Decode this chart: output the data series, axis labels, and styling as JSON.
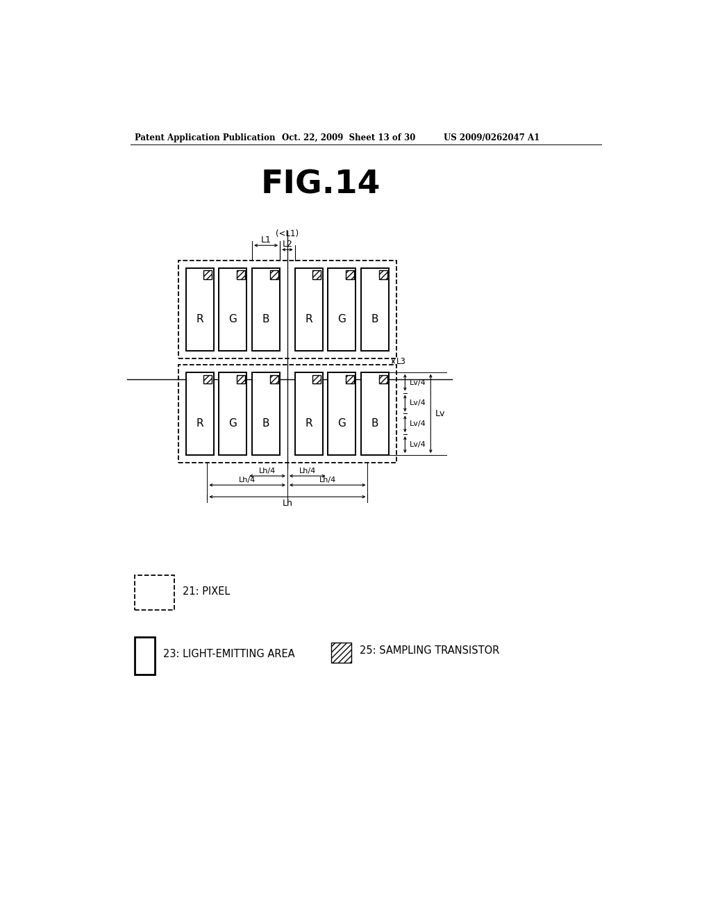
{
  "title": "FIG.14",
  "header_left": "Patent Application Publication",
  "header_mid": "Oct. 22, 2009  Sheet 13 of 30",
  "header_right": "US 2009/0262047 A1",
  "bg_color": "#ffffff",
  "labels": [
    "R",
    "G",
    "B",
    "R",
    "G",
    "B"
  ]
}
